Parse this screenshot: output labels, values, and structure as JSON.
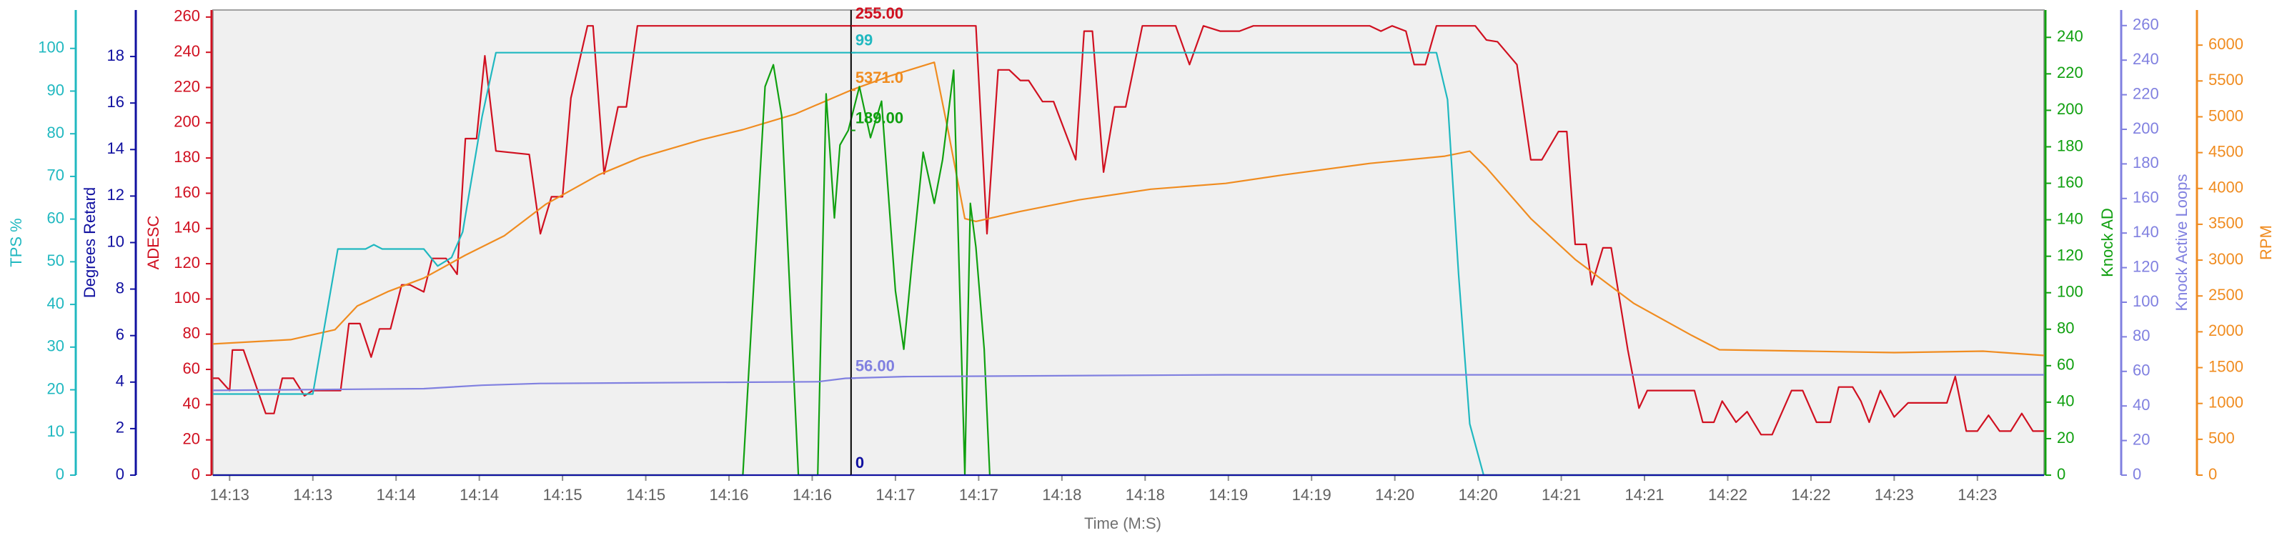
{
  "chart_data": {
    "type": "line",
    "x_label": "Time (M:S)",
    "xlim": [
      0,
      660
    ],
    "xticks": [
      {
        "value": 6,
        "label": "14:13"
      },
      {
        "value": 36,
        "label": "14:13"
      },
      {
        "value": 66,
        "label": "14:14"
      },
      {
        "value": 96,
        "label": "14:14"
      },
      {
        "value": 126,
        "label": "14:15"
      },
      {
        "value": 156,
        "label": "14:15"
      },
      {
        "value": 186,
        "label": "14:16"
      },
      {
        "value": 216,
        "label": "14:16"
      },
      {
        "value": 246,
        "label": "14:17"
      },
      {
        "value": 276,
        "label": "14:17"
      },
      {
        "value": 306,
        "label": "14:18"
      },
      {
        "value": 336,
        "label": "14:18"
      },
      {
        "value": 366,
        "label": "14:19"
      },
      {
        "value": 396,
        "label": "14:19"
      },
      {
        "value": 426,
        "label": "14:20"
      },
      {
        "value": 456,
        "label": "14:20"
      },
      {
        "value": 486,
        "label": "14:21"
      },
      {
        "value": 516,
        "label": "14:21"
      },
      {
        "value": 546,
        "label": "14:22"
      },
      {
        "value": 576,
        "label": "14:22"
      },
      {
        "value": 606,
        "label": "14:23"
      },
      {
        "value": 636,
        "label": "14:23"
      }
    ],
    "y_axes": [
      {
        "label": "TPS %",
        "side": "left",
        "color": "#20b8c0",
        "lim": [
          0,
          109
        ],
        "ticks": [
          0,
          10,
          20,
          30,
          40,
          50,
          60,
          70,
          80,
          90,
          100
        ]
      },
      {
        "label": "Degrees Retard",
        "side": "left",
        "color": "#1010a0",
        "lim": [
          0,
          20
        ],
        "ticks": [
          0,
          2,
          4,
          6,
          8,
          10,
          12,
          14,
          16,
          18
        ]
      },
      {
        "label": "ADESC",
        "side": "left",
        "color": "#d01020",
        "lim": [
          0,
          264
        ],
        "ticks": [
          0,
          20,
          40,
          60,
          80,
          100,
          120,
          140,
          160,
          180,
          200,
          220,
          240,
          260
        ]
      },
      {
        "label": "Knock AD",
        "side": "right",
        "color": "#10a010",
        "lim": [
          0,
          255
        ],
        "ticks": [
          0,
          20,
          40,
          60,
          80,
          100,
          120,
          140,
          160,
          180,
          200,
          220,
          240
        ]
      },
      {
        "label": "Knock Active Loops",
        "side": "right",
        "color": "#8080e0",
        "lim": [
          0,
          269
        ],
        "ticks": [
          0,
          20,
          40,
          60,
          80,
          100,
          120,
          140,
          160,
          180,
          200,
          220,
          240,
          260
        ]
      },
      {
        "label": "RPM",
        "side": "right",
        "color": "#f08c20",
        "lim": [
          0,
          6490
        ],
        "ticks": [
          0,
          500,
          1000,
          1500,
          2000,
          2500,
          3000,
          3500,
          4000,
          4500,
          5000,
          5500,
          6000
        ]
      }
    ],
    "cursor": {
      "x": 230
    },
    "series": [
      {
        "axis": 2,
        "color": "#d01020",
        "cursor_value": 255,
        "cursor_label": "255.00",
        "x": [
          0,
          2,
          6,
          7,
          11,
          19,
          22,
          25,
          29,
          33,
          36,
          40,
          46,
          49,
          53,
          57,
          60,
          64,
          68,
          71,
          76,
          79,
          84,
          88,
          91,
          95,
          98,
          102,
          114,
          118,
          122,
          126,
          129,
          135,
          137,
          141,
          146,
          149,
          153,
          275,
          279,
          283,
          287,
          291,
          294,
          299,
          303,
          311,
          314,
          317,
          321,
          325,
          329,
          335,
          347,
          352,
          357,
          363,
          370,
          375,
          417,
          421,
          425,
          430,
          433,
          437,
          441,
          455,
          459,
          463,
          470,
          475,
          479,
          485,
          488,
          491,
          495,
          497,
          501,
          504,
          510,
          514,
          517,
          534,
          537,
          541,
          544,
          549,
          553,
          558,
          562,
          569,
          573,
          578,
          583,
          586,
          591,
          594,
          597,
          601,
          606,
          611,
          616,
          625,
          628,
          632,
          636,
          640,
          644,
          648,
          652,
          656,
          660
        ],
        "values": [
          55,
          55,
          48,
          71,
          71,
          35,
          35,
          55,
          55,
          45,
          48,
          48,
          48,
          86,
          86,
          67,
          83,
          83,
          108,
          108,
          104,
          123,
          123,
          114,
          191,
          191,
          238,
          184,
          182,
          137,
          158,
          158,
          214,
          255,
          255,
          171,
          209,
          209,
          255,
          255,
          137,
          230,
          230,
          224,
          224,
          212,
          212,
          179,
          252,
          252,
          172,
          209,
          209,
          255,
          255,
          233,
          255,
          252,
          252,
          255,
          255,
          252,
          255,
          252,
          233,
          233,
          255,
          255,
          247,
          246,
          233,
          179,
          179,
          195,
          195,
          131,
          131,
          108,
          129,
          129,
          71,
          38,
          48,
          48,
          30,
          30,
          42,
          30,
          36,
          23,
          23,
          48,
          48,
          30,
          30,
          50,
          50,
          42,
          30,
          48,
          33,
          41,
          41,
          41,
          56,
          25,
          25,
          34,
          25,
          25,
          35,
          25,
          25
        ]
      },
      {
        "axis": 5,
        "color": "#f08c20",
        "cursor_value": 5371,
        "cursor_label": "5371.0",
        "x": [
          0,
          28,
          44,
          52,
          63,
          76,
          91,
          105,
          120,
          139,
          154,
          176,
          191,
          210,
          230,
          244,
          260,
          265,
          271,
          275,
          291,
          312,
          338,
          365,
          386,
          417,
          444,
          453,
          459,
          475,
          491,
          512,
          533,
          543,
          575,
          606,
          638,
          660
        ],
        "values": [
          1830,
          1890,
          2030,
          2360,
          2560,
          2750,
          3070,
          3340,
          3780,
          4190,
          4430,
          4680,
          4820,
          5040,
          5371,
          5570,
          5760,
          4800,
          3580,
          3540,
          3680,
          3840,
          3990,
          4070,
          4190,
          4350,
          4450,
          4520,
          4290,
          3580,
          3010,
          2400,
          1950,
          1750,
          1730,
          1710,
          1730,
          1670
        ]
      },
      {
        "axis": 3,
        "color": "#10a010",
        "cursor_value": 189,
        "cursor_label": "189.00",
        "x": [
          0,
          191,
          199,
          202,
          205,
          211,
          218,
          221,
          224,
          226,
          229,
          233,
          237,
          241,
          246,
          249,
          252,
          256,
          260,
          263,
          267,
          271,
          273,
          275,
          278,
          280,
          660
        ],
        "values": [
          0,
          0,
          213,
          225,
          197,
          0,
          0,
          209,
          141,
          181,
          189,
          213,
          185,
          205,
          101,
          69,
          117,
          177,
          149,
          173,
          222,
          0,
          149,
          125,
          69,
          0,
          0
        ]
      },
      {
        "axis": 0,
        "color": "#20b8c0",
        "cursor_value": 99,
        "x": [
          0,
          36,
          45,
          55,
          58,
          61,
          76,
          81,
          86,
          90,
          97,
          102,
          441,
          445,
          449,
          453,
          458,
          660
        ],
        "values": [
          19,
          19,
          53,
          53,
          54,
          53,
          53,
          49,
          51,
          57,
          84,
          99,
          99,
          88,
          47,
          12,
          0,
          0
        ]
      },
      {
        "axis": 4,
        "color": "#8080e0",
        "cursor_value": 56,
        "cursor_label": "56.00",
        "x": [
          0,
          76,
          97,
          118,
          218,
          228,
          249,
          365,
          660
        ],
        "values": [
          49,
          50,
          52,
          53,
          54,
          56,
          57,
          58,
          58
        ]
      },
      {
        "axis": 1,
        "color": "#1010a0",
        "cursor_value": 0,
        "x": [
          0,
          660
        ],
        "values": [
          0,
          0
        ]
      }
    ]
  }
}
